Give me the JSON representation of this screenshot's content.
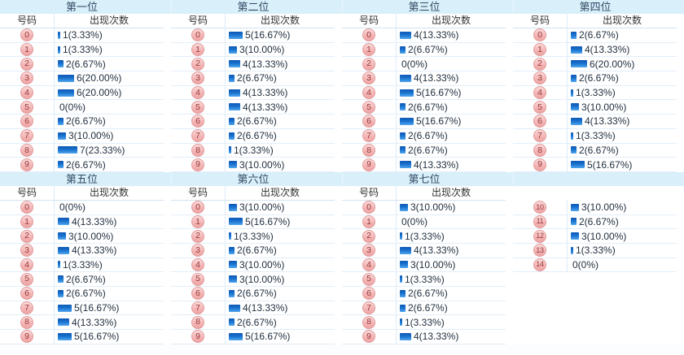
{
  "ui": {
    "number_header": "号码",
    "count_header": "出现次数"
  },
  "colors": {
    "band_bg": "#d9effa",
    "row_border": "#e2eef9",
    "bar_top": "#0d57b5",
    "bar_bottom": "#53a7ee",
    "badge_bg": "#f3b3b3",
    "badge_border": "#e39c9c",
    "badge_text": "#993b3b",
    "label_text": "#1f2d3d"
  },
  "chart_data": [
    {
      "type": "bar",
      "title": "第一位",
      "xlabel": "号码",
      "ylabel": "出现次数",
      "categories": [
        "0",
        "1",
        "2",
        "3",
        "4",
        "5",
        "6",
        "7",
        "8",
        "9"
      ],
      "values": [
        1,
        1,
        2,
        6,
        6,
        0,
        2,
        3,
        7,
        2
      ],
      "value_labels": [
        "1(3.33%)",
        "1(3.33%)",
        "2(6.67%)",
        "6(20.00%)",
        "6(20.00%)",
        "0(0%)",
        "2(6.67%)",
        "3(10.00%)",
        "7(23.33%)",
        "2(6.67%)"
      ]
    },
    {
      "type": "bar",
      "title": "第二位",
      "xlabel": "号码",
      "ylabel": "出现次数",
      "categories": [
        "0",
        "1",
        "2",
        "3",
        "4",
        "5",
        "6",
        "7",
        "8",
        "9"
      ],
      "values": [
        5,
        3,
        4,
        2,
        4,
        4,
        2,
        2,
        1,
        3
      ],
      "value_labels": [
        "5(16.67%)",
        "3(10.00%)",
        "4(13.33%)",
        "2(6.67%)",
        "4(13.33%)",
        "4(13.33%)",
        "2(6.67%)",
        "2(6.67%)",
        "1(3.33%)",
        "3(10.00%)"
      ]
    },
    {
      "type": "bar",
      "title": "第三位",
      "xlabel": "号码",
      "ylabel": "出现次数",
      "categories": [
        "0",
        "1",
        "2",
        "3",
        "4",
        "5",
        "6",
        "7",
        "8",
        "9"
      ],
      "values": [
        4,
        2,
        0,
        4,
        5,
        2,
        5,
        2,
        2,
        4
      ],
      "value_labels": [
        "4(13.33%)",
        "2(6.67%)",
        "0(0%)",
        "4(13.33%)",
        "5(16.67%)",
        "2(6.67%)",
        "5(16.67%)",
        "2(6.67%)",
        "2(6.67%)",
        "4(13.33%)"
      ]
    },
    {
      "type": "bar",
      "title": "第四位",
      "xlabel": "号码",
      "ylabel": "出现次数",
      "categories": [
        "0",
        "1",
        "2",
        "3",
        "4",
        "5",
        "6",
        "7",
        "8",
        "9"
      ],
      "values": [
        2,
        4,
        6,
        2,
        1,
        3,
        4,
        1,
        2,
        5
      ],
      "value_labels": [
        "2(6.67%)",
        "4(13.33%)",
        "6(20.00%)",
        "2(6.67%)",
        "1(3.33%)",
        "3(10.00%)",
        "4(13.33%)",
        "1(3.33%)",
        "2(6.67%)",
        "5(16.67%)"
      ]
    },
    {
      "type": "bar",
      "title": "第五位",
      "xlabel": "号码",
      "ylabel": "出现次数",
      "categories": [
        "0",
        "1",
        "2",
        "3",
        "4",
        "5",
        "6",
        "7",
        "8",
        "9"
      ],
      "values": [
        0,
        4,
        3,
        4,
        1,
        2,
        2,
        5,
        4,
        5
      ],
      "value_labels": [
        "0(0%)",
        "4(13.33%)",
        "3(10.00%)",
        "4(13.33%)",
        "1(3.33%)",
        "2(6.67%)",
        "2(6.67%)",
        "5(16.67%)",
        "4(13.33%)",
        "5(16.67%)"
      ]
    },
    {
      "type": "bar",
      "title": "第六位",
      "xlabel": "号码",
      "ylabel": "出现次数",
      "categories": [
        "0",
        "1",
        "2",
        "3",
        "4",
        "5",
        "6",
        "7",
        "8",
        "9"
      ],
      "values": [
        3,
        5,
        1,
        2,
        3,
        3,
        2,
        4,
        2,
        5
      ],
      "value_labels": [
        "3(10.00%)",
        "5(16.67%)",
        "1(3.33%)",
        "2(6.67%)",
        "3(10.00%)",
        "3(10.00%)",
        "2(6.67%)",
        "4(13.33%)",
        "2(6.67%)",
        "5(16.67%)"
      ]
    },
    {
      "type": "bar",
      "title": "第七位",
      "xlabel": "号码",
      "ylabel": "出现次数",
      "categories": [
        "0",
        "1",
        "2",
        "3",
        "4",
        "5",
        "6",
        "7",
        "8",
        "9"
      ],
      "values": [
        3,
        0,
        1,
        4,
        3,
        1,
        2,
        2,
        1,
        4
      ],
      "value_labels": [
        "3(10.00%)",
        "0(0%)",
        "1(3.33%)",
        "4(13.33%)",
        "3(10.00%)",
        "1(3.33%)",
        "2(6.67%)",
        "2(6.67%)",
        "1(3.33%)",
        "4(13.33%)"
      ]
    },
    {
      "type": "bar",
      "title": "",
      "categories": [
        "10",
        "11",
        "12",
        "13",
        "14"
      ],
      "values": [
        3,
        2,
        3,
        1,
        0
      ],
      "value_labels": [
        "3(10.00%)",
        "2(6.67%)",
        "3(10.00%)",
        "1(3.33%)",
        "0(0%)"
      ]
    }
  ]
}
